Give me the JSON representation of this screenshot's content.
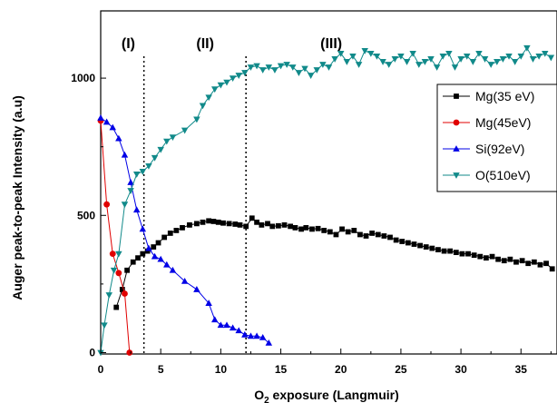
{
  "chart_data": {
    "type": "line",
    "title": "",
    "xlabel": "O2 exposure (Langmuir)",
    "xlabel_parts": {
      "base": "O",
      "sub": "2",
      "rest": " exposure (Langmuir)"
    },
    "ylabel": "Auger peak-to-peak Intensity (a.u)",
    "xlim": [
      0,
      38
    ],
    "ylim": [
      -5,
      1245
    ],
    "xticks": [
      0,
      5,
      10,
      15,
      20,
      25,
      30,
      35
    ],
    "yticks": [
      0,
      500,
      1000
    ],
    "grid": false,
    "legend_position": "right",
    "regions": [
      {
        "label": "(I)",
        "divider_x": 3.6,
        "label_x": 2.3
      },
      {
        "label": "(II)",
        "divider_x": 12.1,
        "label_x": 8.7
      },
      {
        "label": "(III)",
        "label_x": 19.2
      }
    ],
    "series": [
      {
        "name": "Mg(35 eV)",
        "color": "#000000",
        "marker": "square",
        "x": [
          1.3,
          1.8,
          2.2,
          2.7,
          3.1,
          3.5,
          3.9,
          4.4,
          4.8,
          5.3,
          5.8,
          6.3,
          6.8,
          7.4,
          8.0,
          8.5,
          9.0,
          9.4,
          9.8,
          10.2,
          10.7,
          11.2,
          11.6,
          12.1,
          12.6,
          13.0,
          13.4,
          13.9,
          14.3,
          14.8,
          15.3,
          15.8,
          16.2,
          16.7,
          17.1,
          17.6,
          18.1,
          18.6,
          19.1,
          19.6,
          20.1,
          20.6,
          21.1,
          21.6,
          22.1,
          22.6,
          23.1,
          23.6,
          24.1,
          24.6,
          25.1,
          25.6,
          26.1,
          26.6,
          27.1,
          27.6,
          28.1,
          28.6,
          29.1,
          29.6,
          30.1,
          30.6,
          31.1,
          31.6,
          32.1,
          32.6,
          33.1,
          33.6,
          34.1,
          34.6,
          35.1,
          35.6,
          36.1,
          36.6,
          37.1,
          37.6
        ],
        "y": [
          165,
          230,
          300,
          330,
          345,
          360,
          370,
          385,
          400,
          420,
          435,
          445,
          455,
          465,
          470,
          475,
          480,
          478,
          475,
          472,
          470,
          468,
          465,
          460,
          490,
          475,
          465,
          470,
          460,
          462,
          465,
          460,
          455,
          450,
          455,
          450,
          452,
          445,
          440,
          430,
          450,
          440,
          445,
          430,
          425,
          435,
          430,
          425,
          420,
          410,
          405,
          400,
          395,
          390,
          385,
          380,
          375,
          370,
          370,
          365,
          360,
          360,
          355,
          350,
          345,
          350,
          340,
          335,
          340,
          330,
          335,
          325,
          330,
          320,
          325,
          305
        ]
      },
      {
        "name": "Mg(45eV)",
        "color": "#e00000",
        "marker": "circle",
        "x": [
          0.0,
          0.5,
          1.0,
          1.5,
          2.0,
          2.4
        ],
        "y": [
          845,
          540,
          360,
          290,
          215,
          0
        ]
      },
      {
        "name": "Si(92eV)",
        "color": "#0000e6",
        "marker": "triangle-up",
        "x": [
          0.0,
          0.5,
          1.0,
          1.5,
          2.0,
          2.5,
          3.0,
          3.5,
          4.0,
          4.5,
          5.0,
          5.5,
          6.0,
          7.0,
          8.0,
          9.0,
          9.5,
          10.0,
          10.5,
          11.0,
          11.5,
          12.0,
          12.5,
          13.0,
          13.5,
          14.0
        ],
        "y": [
          855,
          840,
          820,
          780,
          720,
          620,
          520,
          450,
          380,
          350,
          340,
          320,
          300,
          260,
          230,
          180,
          120,
          100,
          100,
          90,
          80,
          65,
          60,
          60,
          55,
          35
        ]
      },
      {
        "name": "O(510eV)",
        "color": "#118a8a",
        "marker": "triangle-down",
        "x": [
          0.0,
          0.3,
          0.7,
          1.1,
          1.5,
          2.0,
          2.5,
          3.0,
          3.5,
          4.0,
          4.5,
          5.0,
          5.5,
          6.0,
          7.0,
          8.0,
          8.5,
          9.0,
          9.5,
          10.0,
          10.5,
          11.0,
          11.5,
          12.0,
          12.5,
          13.0,
          13.5,
          14.0,
          14.5,
          15.0,
          15.5,
          16.0,
          16.5,
          17.0,
          17.5,
          18.0,
          18.5,
          19.0,
          19.5,
          20.0,
          20.5,
          21.0,
          21.5,
          22.0,
          22.5,
          23.0,
          23.5,
          24.0,
          24.5,
          25.0,
          25.5,
          26.0,
          26.5,
          27.0,
          27.5,
          28.0,
          28.5,
          29.0,
          29.5,
          30.0,
          30.5,
          31.0,
          31.5,
          32.0,
          32.5,
          33.0,
          33.5,
          34.0,
          34.5,
          35.0,
          35.5,
          36.0,
          36.5,
          37.0,
          37.5
        ],
        "y": [
          0,
          100,
          210,
          300,
          360,
          540,
          590,
          650,
          660,
          680,
          710,
          740,
          770,
          785,
          810,
          850,
          900,
          930,
          960,
          975,
          985,
          1000,
          1010,
          1020,
          1040,
          1045,
          1030,
          1040,
          1030,
          1045,
          1050,
          1040,
          1020,
          1035,
          1010,
          1030,
          1050,
          1040,
          1070,
          1090,
          1060,
          1080,
          1050,
          1100,
          1090,
          1080,
          1060,
          1050,
          1070,
          1080,
          1060,
          1090,
          1050,
          1060,
          1070,
          1040,
          1080,
          1090,
          1040,
          1070,
          1080,
          1060,
          1090,
          1070,
          1050,
          1060,
          1070,
          1080,
          1060,
          1080,
          1110,
          1070,
          1080,
          1090,
          1075
        ]
      }
    ]
  }
}
